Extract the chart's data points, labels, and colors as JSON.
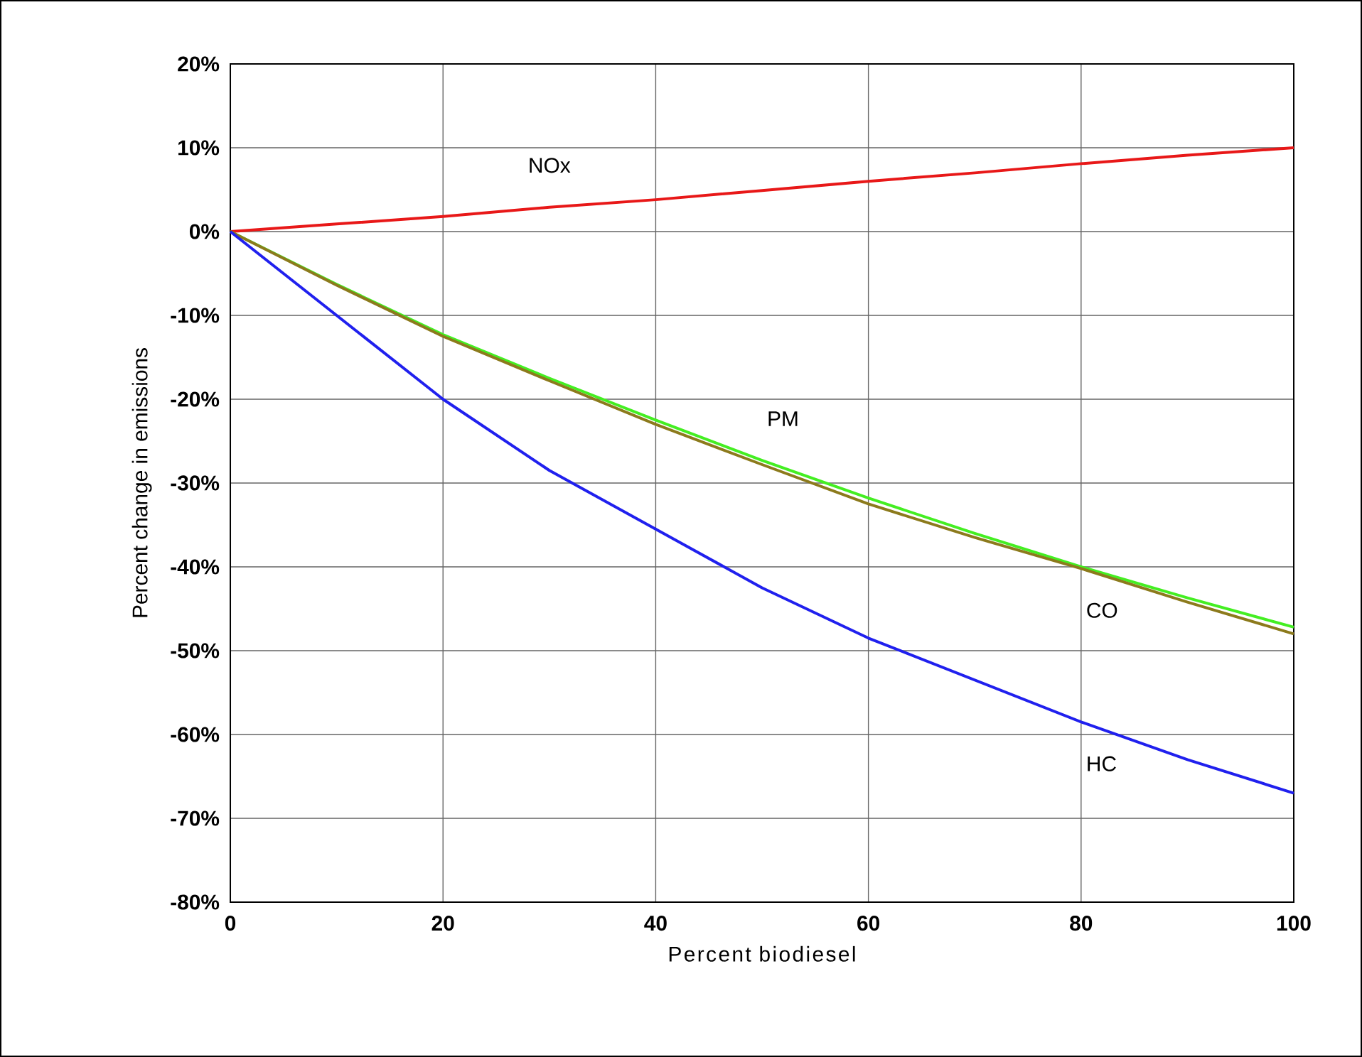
{
  "chart_data": {
    "type": "line",
    "xlabel": "Percent biodiesel",
    "ylabel": "Percent change in emissions",
    "xlim": [
      0,
      100
    ],
    "xticks": [
      0,
      20,
      40,
      60,
      80,
      100
    ],
    "ylim": [
      -80,
      20
    ],
    "yticks": [
      {
        "value": -80,
        "label": "-80%"
      },
      {
        "value": -70,
        "label": "-70%"
      },
      {
        "value": -60,
        "label": "-60%"
      },
      {
        "value": -50,
        "label": "-50%"
      },
      {
        "value": -40,
        "label": "-40%"
      },
      {
        "value": -30,
        "label": "-30%"
      },
      {
        "value": -20,
        "label": "-20%"
      },
      {
        "value": -10,
        "label": "-10%"
      },
      {
        "value": 0,
        "label": "0%"
      },
      {
        "value": 10,
        "label": "10%"
      },
      {
        "value": 20,
        "label": "20%"
      }
    ],
    "grid": true,
    "legend": false,
    "marker": "none",
    "line_style": "solid",
    "x": [
      0,
      10,
      20,
      30,
      40,
      50,
      60,
      70,
      80,
      90,
      100
    ],
    "series": [
      {
        "name": "NOx",
        "color": "#e81818",
        "values": [
          0,
          0.9,
          1.8,
          2.9,
          3.8,
          4.9,
          6,
          7,
          8.1,
          9.1,
          10
        ]
      },
      {
        "name": "PM",
        "color": "#44ee22",
        "values": [
          0,
          -6.3,
          -12.3,
          -17.5,
          -22.5,
          -27.3,
          -31.8,
          -36,
          -40,
          -43.7,
          -47.2
        ]
      },
      {
        "name": "CO",
        "color": "#8c7a1c",
        "values": [
          0,
          -6.4,
          -12.5,
          -17.8,
          -23,
          -27.8,
          -32.5,
          -36.5,
          -40.2,
          -44.2,
          -48
        ]
      },
      {
        "name": "HC",
        "color": "#2020ee",
        "values": [
          0,
          -10,
          -20,
          -28.5,
          -35.5,
          -42.5,
          -48.5,
          -53.5,
          -58.5,
          -63,
          -67
        ]
      }
    ]
  }
}
